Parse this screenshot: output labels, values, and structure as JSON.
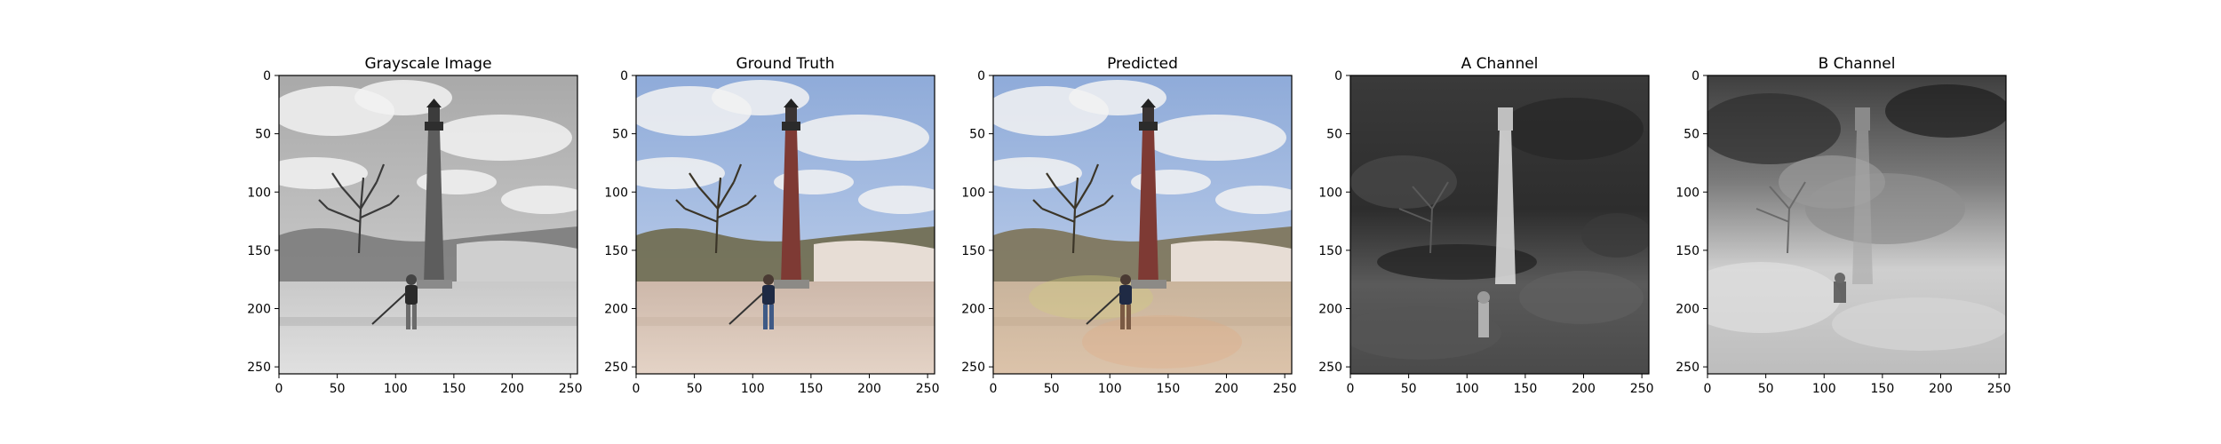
{
  "figure": {
    "panels": [
      {
        "title": "Grayscale Image",
        "variant": "gray"
      },
      {
        "title": "Ground Truth",
        "variant": "color"
      },
      {
        "title": "Predicted",
        "variant": "pred"
      },
      {
        "title": "A Channel",
        "variant": "a"
      },
      {
        "title": "B Channel",
        "variant": "b"
      }
    ],
    "x_ticks": [
      "0",
      "50",
      "100",
      "150",
      "200",
      "250"
    ],
    "y_ticks": [
      "0",
      "50",
      "100",
      "150",
      "200",
      "250"
    ],
    "colors": {
      "axis": "#000000",
      "sky_gray": "#b9b9b9",
      "sky_color": "#9fb8e0",
      "cloud": "#f2f2f2",
      "tower_red": "#7e3a34",
      "sand_color": "#d9c6b7",
      "sand_pred": "#d2b8a0"
    }
  }
}
